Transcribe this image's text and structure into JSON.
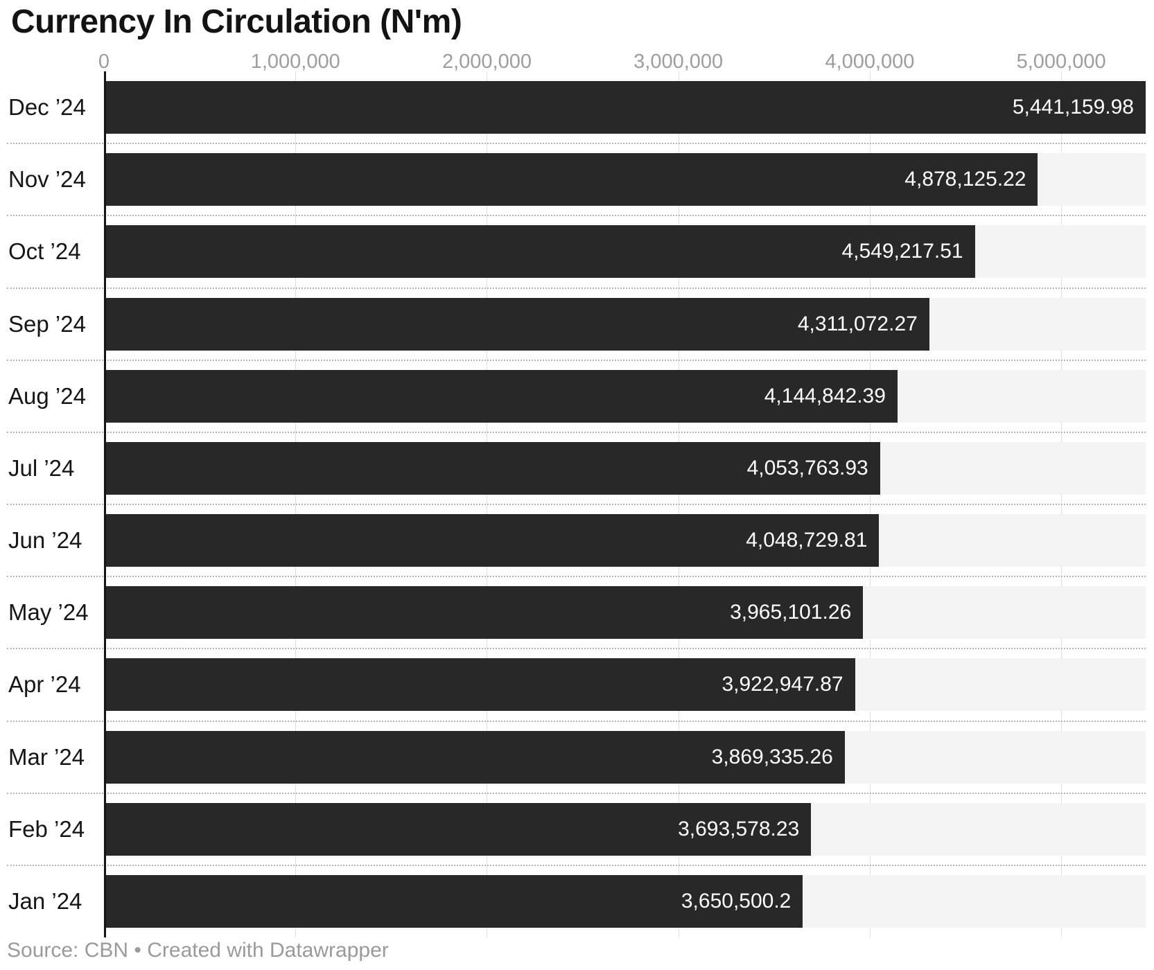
{
  "title": "Currency In Circulation (N'm)",
  "footer": {
    "text": "Source: CBN • Created with Datawrapper"
  },
  "colors": {
    "bar": "#282828",
    "row_background": "#f4f4f4",
    "gridline": "#dfdfdf",
    "zero_axis": "#151515",
    "row_separator_dots": "#b3b3b3",
    "axis_tick_text": "#9d9d9d",
    "category_text": "#161616",
    "value_text_on_bar": "#ffffff",
    "title_text": "#131313",
    "footer_text": "#9a9a9a",
    "background": "#ffffff"
  },
  "chart_data": {
    "type": "bar",
    "orientation": "horizontal",
    "title": "Currency In Circulation (N'm)",
    "xlabel": "",
    "ylabel": "",
    "xlim": [
      0,
      5441159.98
    ],
    "grid": "vertical gridlines at ticks; dotted horizontal separators between rows",
    "legend": "none",
    "source": "CBN",
    "credit": "Created with Datawrapper",
    "x_ticks": [
      {
        "value": 0,
        "label": "0"
      },
      {
        "value": 1000000,
        "label": "1,000,000"
      },
      {
        "value": 2000000,
        "label": "2,000,000"
      },
      {
        "value": 3000000,
        "label": "3,000,000"
      },
      {
        "value": 4000000,
        "label": "4,000,000"
      },
      {
        "value": 5000000,
        "label": "5,000,000"
      }
    ],
    "categories": [
      "Dec ’24",
      "Nov ’24",
      "Oct ’24",
      "Sep ’24",
      "Aug ’24",
      "Jul ’24",
      "Jun ’24",
      "May ’24",
      "Apr ’24",
      "Mar ’24",
      "Feb ’24",
      "Jan ’24"
    ],
    "values": [
      5441159.98,
      4878125.22,
      4549217.51,
      4311072.27,
      4144842.39,
      4053763.93,
      4048729.81,
      3965101.26,
      3922947.87,
      3869335.26,
      3693578.23,
      3650500.2
    ],
    "value_labels": [
      "5,441,159.98",
      "4,878,125.22",
      "4,549,217.51",
      "4,311,072.27",
      "4,144,842.39",
      "4,053,763.93",
      "4,048,729.81",
      "3,965,101.26",
      "3,922,947.87",
      "3,869,335.26",
      "3,693,578.23",
      "3,650,500.2"
    ]
  }
}
